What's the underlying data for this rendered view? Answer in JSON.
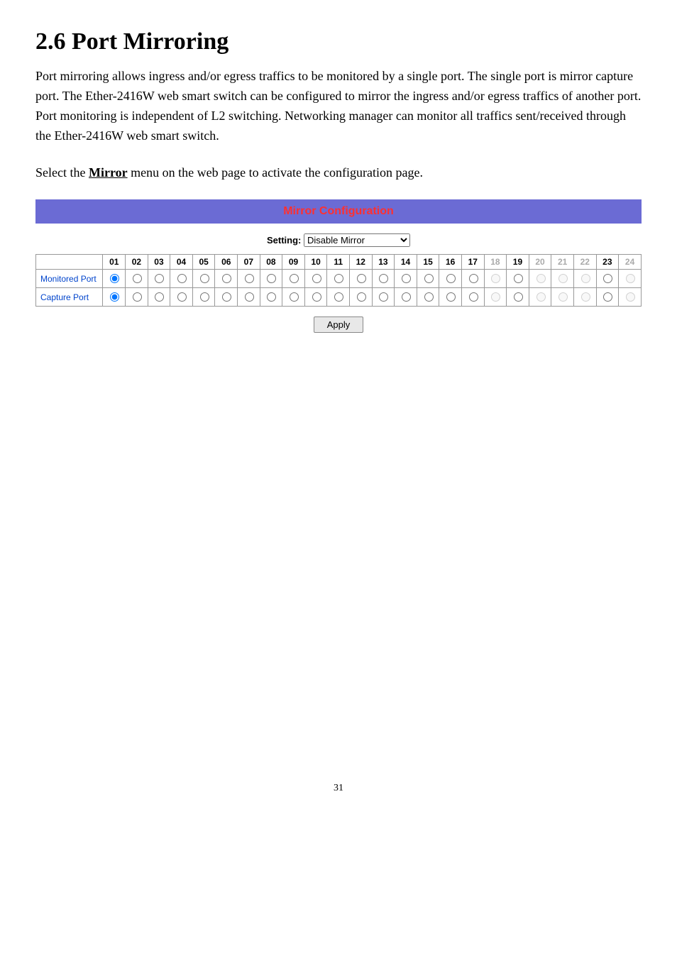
{
  "heading": "2.6  Port Mirroring",
  "para1": "Port mirroring allows ingress and/or egress traffics to be monitored by a single port. The single port is mirror capture port. The Ether-2416W web smart switch can be configured to mirror the ingress and/or egress traffics of another port. Port monitoring is independent of L2 switching. Networking manager can monitor all traffics sent/received through the Ether-2416W web smart switch.",
  "para2_pre": "Select the ",
  "para2_mirror": "Mirror",
  "para2_post": " menu on the web page to activate the configuration page.",
  "panel": {
    "title": "Mirror Configuration",
    "setting_label": "Setting:",
    "setting_value": "Disable Mirror",
    "headers": [
      "01",
      "02",
      "03",
      "04",
      "05",
      "06",
      "07",
      "08",
      "09",
      "10",
      "11",
      "12",
      "13",
      "14",
      "15",
      "16",
      "17",
      "18",
      "19",
      "20",
      "21",
      "22",
      "23",
      "24"
    ],
    "disabled_ports": [
      18,
      20,
      21,
      22,
      24
    ],
    "rows": [
      {
        "label": "Monitored Port",
        "checked_port": 1
      },
      {
        "label": "Capture Port",
        "checked_port": 1
      }
    ],
    "apply_label": "Apply"
  },
  "page_number": "31"
}
